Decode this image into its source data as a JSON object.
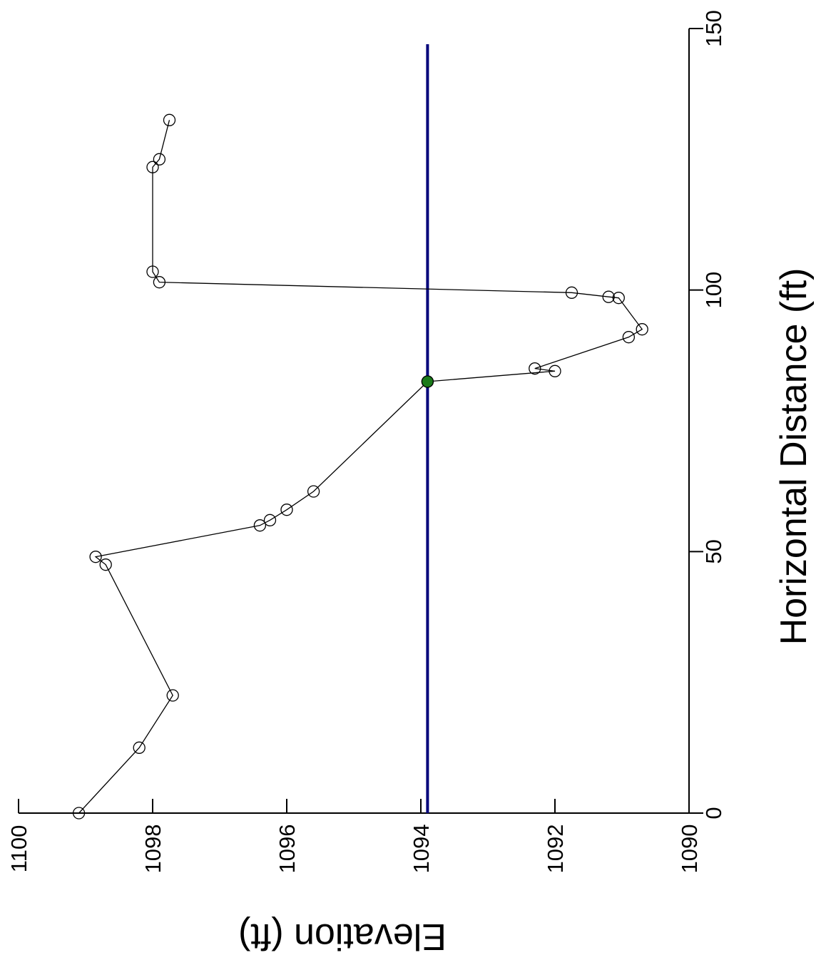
{
  "chart_data": {
    "type": "line",
    "orientation": "rotated-90",
    "xlabel": "Horizontal Distance (ft)",
    "ylabel": "Elevation (ft)",
    "xlim": [
      0,
      150
    ],
    "ylim": [
      1090,
      1100
    ],
    "x_ticks": [
      "0",
      "50",
      "100",
      "150"
    ],
    "y_ticks": [
      "1100",
      "1098",
      "1096",
      "1094",
      "1092",
      "1090"
    ],
    "grid": false,
    "colors": {
      "profile": "#000000",
      "water_surface": "#00007a",
      "marker_fill": "#1a7a1a"
    },
    "series": [
      {
        "style": "line+open-circle",
        "points": [
          [
            0,
            1099.1
          ],
          [
            12.5,
            1098.2
          ],
          [
            22.5,
            1097.7
          ],
          [
            47.5,
            1098.7
          ],
          [
            49.0,
            1098.85
          ],
          [
            55.0,
            1096.4
          ],
          [
            56.0,
            1096.25
          ],
          [
            58.0,
            1096.0
          ],
          [
            61.5,
            1095.6
          ],
          [
            82.5,
            1093.9
          ],
          [
            84.5,
            1092.0
          ],
          [
            85.0,
            1092.3
          ],
          [
            91.0,
            1090.9
          ],
          [
            92.5,
            1090.7
          ],
          [
            98.5,
            1091.05
          ],
          [
            98.7,
            1091.2
          ],
          [
            99.5,
            1091.75
          ],
          [
            101.5,
            1097.9
          ],
          [
            103.5,
            1098.0
          ],
          [
            123.5,
            1098.0
          ],
          [
            125.0,
            1097.9
          ],
          [
            132.5,
            1097.75
          ]
        ]
      },
      {
        "style": "horizontal-line",
        "x": [
          0,
          147
        ],
        "y": 1093.9
      }
    ],
    "highlight_point": [
      82.5,
      1093.9
    ]
  }
}
